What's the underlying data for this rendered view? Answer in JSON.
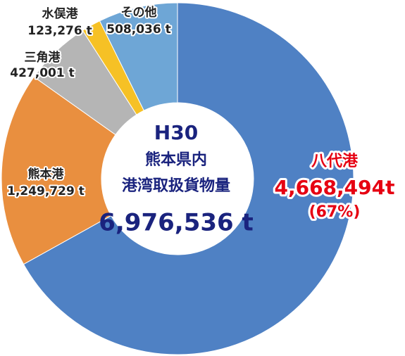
{
  "chart_data": {
    "type": "donut",
    "categories": [
      "八代港",
      "熊本港",
      "三角港",
      "水俣港",
      "その他"
    ],
    "values": [
      4668494,
      1249729,
      427001,
      123276,
      508036
    ],
    "value_labels": [
      "4,668,494t",
      "1,249,729 t",
      "427,001 t",
      "123,276 t",
      "508,036 t"
    ],
    "colors": [
      "#4f81c4",
      "#e98f3f",
      "#b5b5b5",
      "#f6c125",
      "#6ea6d6"
    ],
    "percent_label": "(67%)",
    "center_text": [
      "H30",
      "熊本県内",
      "港湾取扱貨物量",
      "6,976,536 t"
    ]
  }
}
